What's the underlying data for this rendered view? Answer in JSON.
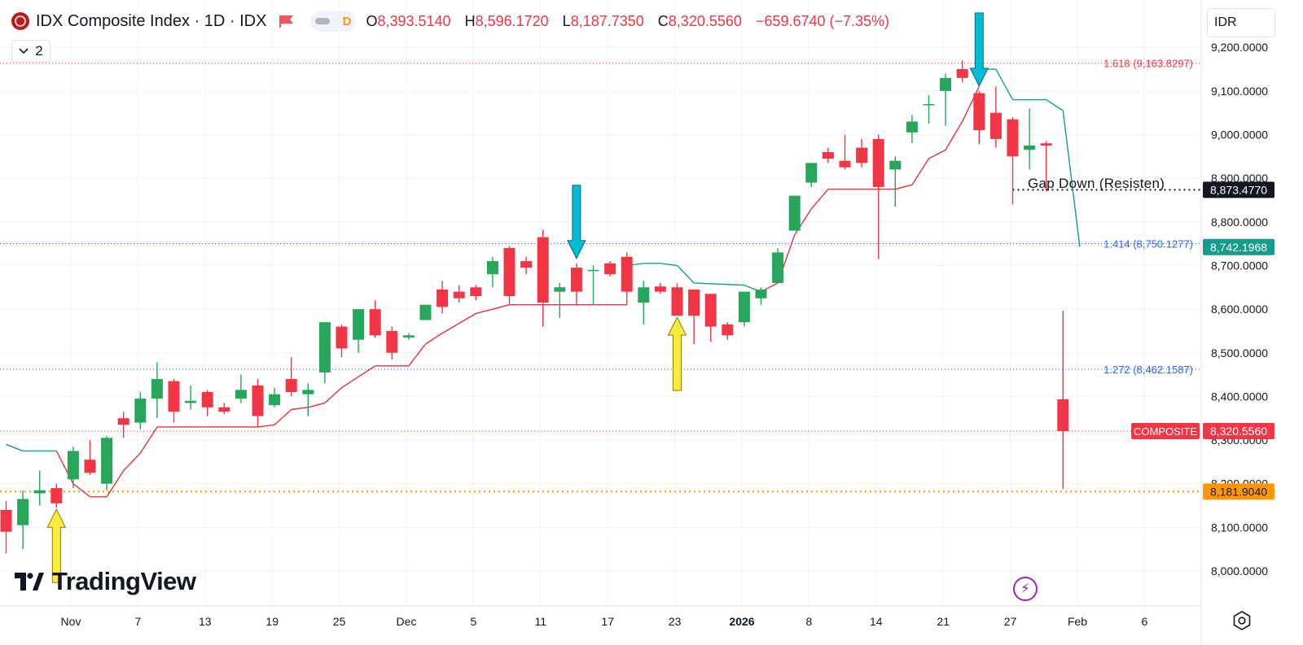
{
  "header": {
    "title": "IDX Composite Index · 1D · IDX",
    "toggle_label": "D",
    "ohlc": [
      {
        "k": "O",
        "v": "8,393.5140"
      },
      {
        "k": "H",
        "v": "8,596.1720"
      },
      {
        "k": "L",
        "v": "8,187.7350"
      },
      {
        "k": "C",
        "v": "8,320.5560"
      },
      {
        "k": "",
        "v": "−659.6740 (−7.35%)"
      }
    ],
    "layers_count": "2"
  },
  "currency": "IDR",
  "branding": "TradingView",
  "colors": {
    "up": "#26a65b",
    "down": "#f23645",
    "fib_red": "#f23645",
    "fib_blue": "#2962ff",
    "st_red": "#e8313f",
    "st_green": "#169c8a",
    "orange": "#ff9800"
  },
  "chart_data": {
    "type": "candlestick",
    "title": "IDX Composite Index · 1D · IDX",
    "ylim": [
      7940,
      9270
    ],
    "y_ticks": [
      {
        "v": 8000,
        "label": "8,000.0000"
      },
      {
        "v": 8100,
        "label": "8,100.0000"
      },
      {
        "v": 8200,
        "label": "8,200.0000"
      },
      {
        "v": 8300,
        "label": "8,300.0000"
      },
      {
        "v": 8400,
        "label": "8,400.0000"
      },
      {
        "v": 8500,
        "label": "8,500.0000"
      },
      {
        "v": 8600,
        "label": "8,600.0000"
      },
      {
        "v": 8700,
        "label": "8,700.0000"
      },
      {
        "v": 8800,
        "label": "8,800.0000"
      },
      {
        "v": 8900,
        "label": "8,900.0000"
      },
      {
        "v": 9000,
        "label": "9,000.0000"
      },
      {
        "v": 9100,
        "label": "9,100.0000"
      },
      {
        "v": 9200,
        "label": "9,200.0000"
      }
    ],
    "x_ticks": [
      {
        "day": -2,
        "label": "Nov"
      },
      {
        "day": 2,
        "label": "7"
      },
      {
        "day": 6,
        "label": "13"
      },
      {
        "day": 10,
        "label": "19"
      },
      {
        "day": 14,
        "label": "25"
      },
      {
        "day": 18,
        "label": "Dec"
      },
      {
        "day": 22,
        "label": "5"
      },
      {
        "day": 26,
        "label": "11"
      },
      {
        "day": 30,
        "label": "17"
      },
      {
        "day": 34,
        "label": "23"
      },
      {
        "day": 38,
        "label": "2026"
      },
      {
        "day": 42,
        "label": "8"
      },
      {
        "day": 46,
        "label": "14"
      },
      {
        "day": 50,
        "label": "21"
      },
      {
        "day": 54,
        "label": "27"
      },
      {
        "day": 58,
        "label": "Feb"
      },
      {
        "day": 62,
        "label": "6"
      }
    ],
    "candles": [
      {
        "o": 8140,
        "h": 8160,
        "l": 8040,
        "c": 8090
      },
      {
        "o": 8105,
        "h": 8185,
        "l": 8050,
        "c": 8165
      },
      {
        "o": 8178,
        "h": 8230,
        "l": 8150,
        "c": 8185
      },
      {
        "o": 8190,
        "h": 8200,
        "l": 8145,
        "c": 8155
      },
      {
        "o": 8210,
        "h": 8285,
        "l": 8190,
        "c": 8275
      },
      {
        "o": 8255,
        "h": 8300,
        "l": 8220,
        "c": 8225
      },
      {
        "o": 8200,
        "h": 8310,
        "l": 8185,
        "c": 8305
      },
      {
        "o": 8350,
        "h": 8365,
        "l": 8305,
        "c": 8335
      },
      {
        "o": 8340,
        "h": 8410,
        "l": 8325,
        "c": 8395
      },
      {
        "o": 8395,
        "h": 8478,
        "l": 8350,
        "c": 8440
      },
      {
        "o": 8435,
        "h": 8440,
        "l": 8340,
        "c": 8365
      },
      {
        "o": 8385,
        "h": 8425,
        "l": 8370,
        "c": 8390
      },
      {
        "o": 8410,
        "h": 8415,
        "l": 8355,
        "c": 8375
      },
      {
        "o": 8375,
        "h": 8385,
        "l": 8360,
        "c": 8365
      },
      {
        "o": 8395,
        "h": 8450,
        "l": 8385,
        "c": 8415
      },
      {
        "o": 8425,
        "h": 8440,
        "l": 8330,
        "c": 8355
      },
      {
        "o": 8380,
        "h": 8420,
        "l": 8375,
        "c": 8405
      },
      {
        "o": 8440,
        "h": 8490,
        "l": 8400,
        "c": 8410
      },
      {
        "o": 8405,
        "h": 8430,
        "l": 8355,
        "c": 8415
      },
      {
        "o": 8455,
        "h": 8570,
        "l": 8430,
        "c": 8570
      },
      {
        "o": 8560,
        "h": 8565,
        "l": 8490,
        "c": 8510
      },
      {
        "o": 8530,
        "h": 8600,
        "l": 8500,
        "c": 8600
      },
      {
        "o": 8600,
        "h": 8620,
        "l": 8535,
        "c": 8540
      },
      {
        "o": 8550,
        "h": 8560,
        "l": 8485,
        "c": 8500
      },
      {
        "o": 8535,
        "h": 8545,
        "l": 8530,
        "c": 8540
      },
      {
        "o": 8575,
        "h": 8610,
        "l": 8575,
        "c": 8610
      },
      {
        "o": 8645,
        "h": 8665,
        "l": 8590,
        "c": 8605
      },
      {
        "o": 8640,
        "h": 8655,
        "l": 8615,
        "c": 8625
      },
      {
        "o": 8650,
        "h": 8655,
        "l": 8620,
        "c": 8630
      },
      {
        "o": 8680,
        "h": 8720,
        "l": 8650,
        "c": 8710
      },
      {
        "o": 8740,
        "h": 8745,
        "l": 8610,
        "c": 8630
      },
      {
        "o": 8710,
        "h": 8720,
        "l": 8680,
        "c": 8695
      },
      {
        "o": 8765,
        "h": 8782,
        "l": 8560,
        "c": 8615
      },
      {
        "o": 8640,
        "h": 8660,
        "l": 8580,
        "c": 8650
      },
      {
        "o": 8695,
        "h": 8705,
        "l": 8610,
        "c": 8640
      },
      {
        "o": 8690,
        "h": 8700,
        "l": 8610,
        "c": 8690
      },
      {
        "o": 8705,
        "h": 8710,
        "l": 8675,
        "c": 8680
      },
      {
        "o": 8720,
        "h": 8730,
        "l": 8610,
        "c": 8640
      },
      {
        "o": 8615,
        "h": 8665,
        "l": 8565,
        "c": 8650
      },
      {
        "o": 8652,
        "h": 8660,
        "l": 8635,
        "c": 8640
      },
      {
        "o": 8650,
        "h": 8660,
        "l": 8585,
        "c": 8585
      },
      {
        "o": 8645,
        "h": 8645,
        "l": 8520,
        "c": 8585
      },
      {
        "o": 8635,
        "h": 8635,
        "l": 8525,
        "c": 8560
      },
      {
        "o": 8565,
        "h": 8570,
        "l": 8530,
        "c": 8540
      },
      {
        "o": 8570,
        "h": 8640,
        "l": 8560,
        "c": 8640
      },
      {
        "o": 8625,
        "h": 8650,
        "l": 8610,
        "c": 8645
      },
      {
        "o": 8660,
        "h": 8740,
        "l": 8660,
        "c": 8730
      },
      {
        "o": 8780,
        "h": 8860,
        "l": 8780,
        "c": 8860
      },
      {
        "o": 8890,
        "h": 8935,
        "l": 8880,
        "c": 8935
      },
      {
        "o": 8960,
        "h": 8970,
        "l": 8935,
        "c": 8945
      },
      {
        "o": 8940,
        "h": 9000,
        "l": 8920,
        "c": 8925
      },
      {
        "o": 8970,
        "h": 8990,
        "l": 8925,
        "c": 8935
      },
      {
        "o": 8990,
        "h": 9000,
        "l": 8715,
        "c": 8880
      },
      {
        "o": 8920,
        "h": 8950,
        "l": 8835,
        "c": 8940
      },
      {
        "o": 9005,
        "h": 9045,
        "l": 8980,
        "c": 9030
      },
      {
        "o": 9070,
        "h": 9090,
        "l": 9025,
        "c": 9070
      },
      {
        "o": 9100,
        "h": 9140,
        "l": 9020,
        "c": 9130
      },
      {
        "o": 9150,
        "h": 9170,
        "l": 9120,
        "c": 9130
      },
      {
        "o": 9095,
        "h": 9100,
        "l": 8978,
        "c": 9010
      },
      {
        "o": 9050,
        "h": 9110,
        "l": 8970,
        "c": 8990
      },
      {
        "o": 9035,
        "h": 9040,
        "l": 8840,
        "c": 8950
      },
      {
        "o": 8965,
        "h": 9060,
        "l": 8920,
        "c": 8975
      },
      {
        "o": 8980,
        "h": 8985,
        "l": 8870,
        "c": 8975
      },
      {
        "o": 8393.514,
        "h": 8596.172,
        "l": 8187.735,
        "c": 8320.556
      }
    ],
    "supertrend": [
      {
        "i": 0,
        "v": 8290,
        "trend": "up"
      },
      {
        "i": 1,
        "v": 8275,
        "trend": "up"
      },
      {
        "i": 3,
        "v": 8275,
        "trend": "up"
      },
      {
        "i": 4,
        "v": 8200,
        "trend": "down"
      },
      {
        "i": 5,
        "v": 8170,
        "trend": "down"
      },
      {
        "i": 6,
        "v": 8170,
        "trend": "down"
      },
      {
        "i": 7,
        "v": 8230,
        "trend": "down"
      },
      {
        "i": 8,
        "v": 8270,
        "trend": "down"
      },
      {
        "i": 9,
        "v": 8330,
        "trend": "down"
      },
      {
        "i": 15,
        "v": 8330,
        "trend": "down"
      },
      {
        "i": 16,
        "v": 8335,
        "trend": "down"
      },
      {
        "i": 17,
        "v": 8370,
        "trend": "down"
      },
      {
        "i": 18,
        "v": 8375,
        "trend": "down"
      },
      {
        "i": 19,
        "v": 8385,
        "trend": "down"
      },
      {
        "i": 20,
        "v": 8420,
        "trend": "down"
      },
      {
        "i": 22,
        "v": 8470,
        "trend": "down"
      },
      {
        "i": 24,
        "v": 8470,
        "trend": "down"
      },
      {
        "i": 25,
        "v": 8520,
        "trend": "down"
      },
      {
        "i": 26,
        "v": 8545,
        "trend": "down"
      },
      {
        "i": 28,
        "v": 8590,
        "trend": "down"
      },
      {
        "i": 29,
        "v": 8600,
        "trend": "down"
      },
      {
        "i": 30,
        "v": 8610,
        "trend": "down"
      },
      {
        "i": 37,
        "v": 8610,
        "trend": "down"
      },
      {
        "i": 37,
        "v": 8700,
        "trend": "up"
      },
      {
        "i": 38,
        "v": 8705,
        "trend": "up"
      },
      {
        "i": 39,
        "v": 8705,
        "trend": "up"
      },
      {
        "i": 40,
        "v": 8700,
        "trend": "up"
      },
      {
        "i": 41,
        "v": 8660,
        "trend": "up"
      },
      {
        "i": 44,
        "v": 8655,
        "trend": "up"
      },
      {
        "i": 45,
        "v": 8640,
        "trend": "up"
      },
      {
        "i": 46,
        "v": 8660,
        "trend": "down"
      },
      {
        "i": 47,
        "v": 8770,
        "trend": "down"
      },
      {
        "i": 48,
        "v": 8830,
        "trend": "down"
      },
      {
        "i": 49,
        "v": 8875,
        "trend": "down"
      },
      {
        "i": 52,
        "v": 8875,
        "trend": "down"
      },
      {
        "i": 53,
        "v": 8875,
        "trend": "down"
      },
      {
        "i": 54,
        "v": 8885,
        "trend": "down"
      },
      {
        "i": 55,
        "v": 8945,
        "trend": "down"
      },
      {
        "i": 56,
        "v": 8965,
        "trend": "down"
      },
      {
        "i": 57,
        "v": 9030,
        "trend": "down"
      },
      {
        "i": 58,
        "v": 9110,
        "trend": "down"
      },
      {
        "i": 58,
        "v": 9150,
        "trend": "up"
      },
      {
        "i": 59,
        "v": 9150,
        "trend": "up"
      },
      {
        "i": 60,
        "v": 9080,
        "trend": "up"
      },
      {
        "i": 62,
        "v": 9080,
        "trend": "up"
      },
      {
        "i": 63,
        "v": 9055,
        "trend": "up"
      },
      {
        "i": 64,
        "v": 8743,
        "trend": "up"
      }
    ],
    "fib_levels": [
      {
        "v": 9163.8297,
        "label": "1.618 (9,163.8297)",
        "color": "red"
      },
      {
        "v": 8750.1277,
        "label": "1.414 (8,750.1277)",
        "color": "blue"
      },
      {
        "v": 8462.1587,
        "label": "1.272 (8,462.1587)",
        "color": "blue"
      }
    ],
    "gap_line": {
      "v": 8873.477,
      "label": "Gap Down (Resisten)",
      "price_label": "8,873.4770"
    },
    "support_line": {
      "v": 8181.904,
      "price_label": "8,181.9040"
    },
    "last_price": {
      "v": 8320.556,
      "label": "COMPOSITE",
      "price_label": "8,320.5560"
    },
    "supertrend_price": {
      "v": 8742.1968,
      "price_label": "8,742.1968"
    },
    "arrows": [
      {
        "i": 3,
        "dir": "up",
        "color": "yellow"
      },
      {
        "i": 34,
        "dir": "down",
        "color": "blue"
      },
      {
        "i": 40,
        "dir": "up",
        "color": "yellow"
      },
      {
        "i": 58,
        "dir": "down",
        "color": "blue"
      }
    ]
  }
}
